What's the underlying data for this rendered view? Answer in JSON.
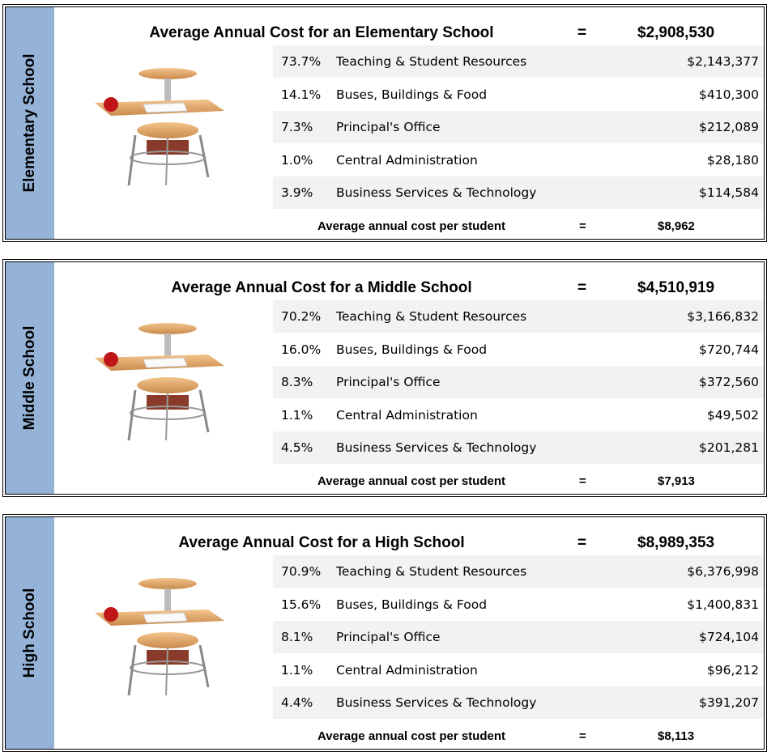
{
  "panels": [
    {
      "side_label": "Elementary School",
      "title": "Average Annual Cost for an Elementary School",
      "equals": "=",
      "total": "$2,908,530",
      "rows": [
        {
          "percent": "73.7%",
          "label": "Teaching & Student Resources",
          "amount": "$2,143,377"
        },
        {
          "percent": "14.1%",
          "label": "Buses, Buildings & Food",
          "amount": "$410,300"
        },
        {
          "percent": "7.3%",
          "label": "Principal's Office",
          "amount": "$212,089"
        },
        {
          "percent": "1.0%",
          "label": "Central Administration",
          "amount": "$28,180"
        },
        {
          "percent": "3.9%",
          "label": "Business Services & Technology",
          "amount": "$114,584"
        }
      ],
      "footer": {
        "label": "Average annual cost per student",
        "equals": "=",
        "value": "$8,962"
      }
    },
    {
      "side_label": "Middle School",
      "title": "Average Annual Cost for a Middle School",
      "equals": "=",
      "total": "$4,510,919",
      "rows": [
        {
          "percent": "70.2%",
          "label": "Teaching & Student Resources",
          "amount": "$3,166,832"
        },
        {
          "percent": "16.0%",
          "label": "Buses, Buildings & Food",
          "amount": "$720,744"
        },
        {
          "percent": "8.3%",
          "label": "Principal's Office",
          "amount": "$372,560"
        },
        {
          "percent": "1.1%",
          "label": "Central Administration",
          "amount": "$49,502"
        },
        {
          "percent": "4.5%",
          "label": "Business Services & Technology",
          "amount": "$201,281"
        }
      ],
      "footer": {
        "label": "Average annual cost per student",
        "equals": "=",
        "value": "$7,913"
      }
    },
    {
      "side_label": "High School",
      "title": "Average Annual Cost for a High School",
      "equals": "=",
      "total": "$8,989,353",
      "rows": [
        {
          "percent": "70.9%",
          "label": "Teaching & Student Resources",
          "amount": "$6,376,998"
        },
        {
          "percent": "15.6%",
          "label": "Buses, Buildings & Food",
          "amount": "$1,400,831"
        },
        {
          "percent": "8.1%",
          "label": "Principal's Office",
          "amount": "$724,104"
        },
        {
          "percent": "1.1%",
          "label": "Central Administration",
          "amount": "$96,212"
        },
        {
          "percent": "4.4%",
          "label": "Business Services & Technology",
          "amount": "$391,207"
        }
      ],
      "footer": {
        "label": "Average annual cost per student",
        "equals": "=",
        "value": "$8,113"
      }
    }
  ]
}
